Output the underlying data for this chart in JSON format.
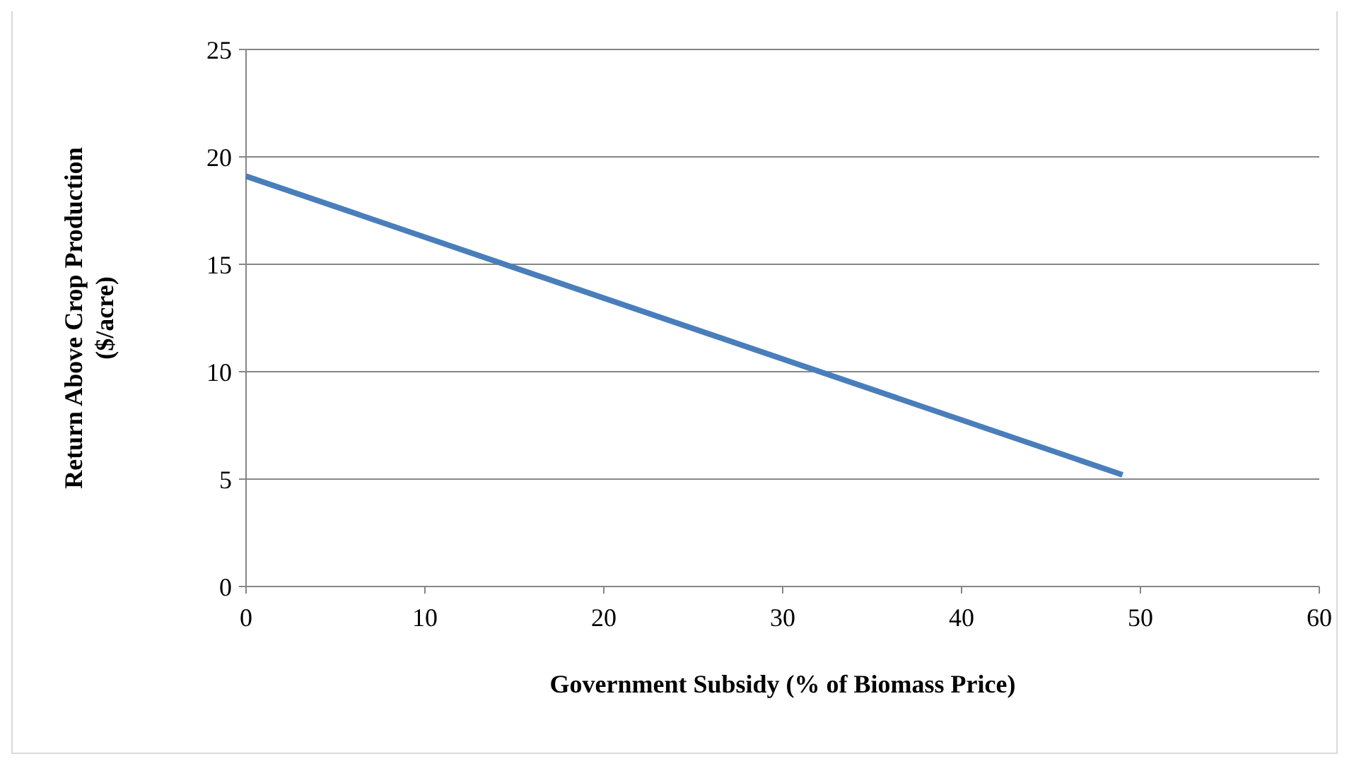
{
  "chart_data": {
    "type": "line",
    "xlabel": "Government Subsidy (% of Biomass Price)",
    "ylabel": "Return Above Crop Production\n($/acre)",
    "series": [
      {
        "color": "#4a7ebb",
        "x": [
          0,
          49
        ],
        "values": [
          19.1,
          5.2
        ]
      }
    ],
    "xlim": [
      0,
      60
    ],
    "xticks": [
      0,
      10,
      20,
      30,
      40,
      50,
      60
    ],
    "ylim": [
      0,
      25
    ],
    "yticks": [
      0,
      5,
      10,
      15,
      20,
      25
    ],
    "grid": "y",
    "marker": "none",
    "line_style": "solid"
  }
}
